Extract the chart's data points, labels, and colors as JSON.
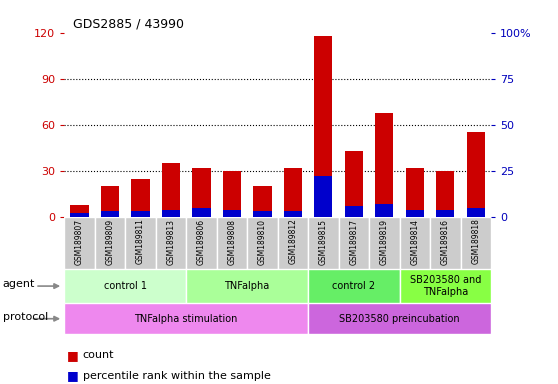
{
  "title": "GDS2885 / 43990",
  "samples": [
    "GSM189807",
    "GSM189809",
    "GSM189811",
    "GSM189813",
    "GSM189806",
    "GSM189808",
    "GSM189810",
    "GSM189812",
    "GSM189815",
    "GSM189817",
    "GSM189819",
    "GSM189814",
    "GSM189816",
    "GSM189818"
  ],
  "count_values": [
    8,
    20,
    25,
    35,
    32,
    30,
    20,
    32,
    118,
    43,
    68,
    32,
    30,
    55
  ],
  "percentile_values": [
    2,
    3,
    3,
    4,
    5,
    4,
    3,
    3,
    22,
    6,
    7,
    4,
    4,
    5
  ],
  "ylim_left": [
    0,
    120
  ],
  "ylim_right": [
    0,
    100
  ],
  "yticks_left": [
    0,
    30,
    60,
    90,
    120
  ],
  "yticks_right": [
    0,
    25,
    50,
    75,
    100
  ],
  "ytick_labels_right": [
    "0",
    "25",
    "50",
    "75",
    "100%"
  ],
  "bar_color_count": "#cc0000",
  "bar_color_pct": "#0000cc",
  "bar_width": 0.6,
  "agent_groups": [
    {
      "label": "control 1",
      "start": 0,
      "end": 3,
      "color": "#ccffcc"
    },
    {
      "label": "TNFalpha",
      "start": 4,
      "end": 7,
      "color": "#aaff99"
    },
    {
      "label": "control 2",
      "start": 8,
      "end": 10,
      "color": "#66ee66"
    },
    {
      "label": "SB203580 and\nTNFalpha",
      "start": 11,
      "end": 13,
      "color": "#88ff44"
    }
  ],
  "protocol_groups": [
    {
      "label": "TNFalpha stimulation",
      "start": 0,
      "end": 7,
      "color": "#ee88ee"
    },
    {
      "label": "SB203580 preincubation",
      "start": 8,
      "end": 13,
      "color": "#cc66dd"
    }
  ],
  "legend_count_label": "count",
  "legend_pct_label": "percentile rank within the sample",
  "tick_color_left": "#cc0000",
  "tick_color_right": "#0000bb",
  "sample_box_color": "#cccccc"
}
